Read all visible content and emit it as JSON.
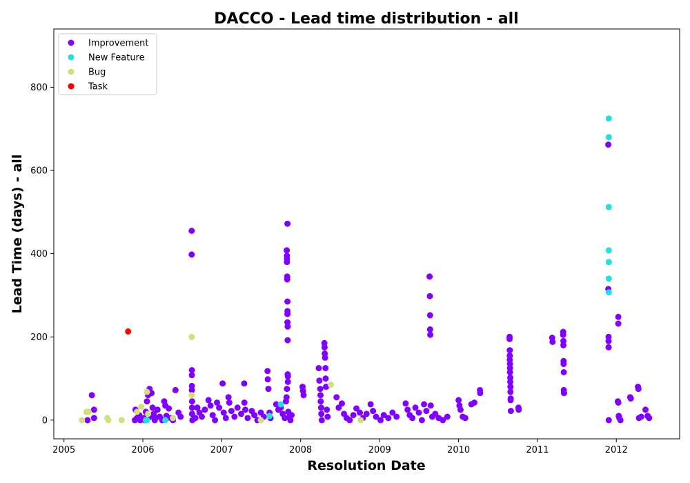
{
  "chart_data": {
    "type": "scatter",
    "title": "DACCO - Lead time distribution - all",
    "xlabel": "Resolution Date",
    "ylabel": "Lead Time (days) - all",
    "xlim": [
      "2004-11-15",
      "2012-10-20"
    ],
    "ylim": [
      -45,
      940
    ],
    "x_ticks": [
      "2005",
      "2006",
      "2007",
      "2008",
      "2009",
      "2010",
      "2011",
      "2012"
    ],
    "y_ticks": [
      0,
      200,
      400,
      600,
      800
    ],
    "grid": false,
    "legend_position": "top-left",
    "series": [
      {
        "name": "Improvement",
        "color": "#8000ff",
        "points": [
          [
            "2005-04-20",
            0
          ],
          [
            "2005-05-10",
            60
          ],
          [
            "2005-05-20",
            25
          ],
          [
            "2005-05-20",
            5
          ],
          [
            "2005-11-25",
            0
          ],
          [
            "2005-11-28",
            25
          ],
          [
            "2005-12-05",
            5
          ],
          [
            "2005-12-15",
            12
          ],
          [
            "2005-12-20",
            0
          ],
          [
            "2006-01-05",
            5
          ],
          [
            "2006-01-10",
            0
          ],
          [
            "2006-01-15",
            20
          ],
          [
            "2006-01-20",
            45
          ],
          [
            "2006-01-25",
            60
          ],
          [
            "2006-02-01",
            75
          ],
          [
            "2006-02-05",
            8
          ],
          [
            "2006-02-10",
            65
          ],
          [
            "2006-02-15",
            30
          ],
          [
            "2006-02-20",
            15
          ],
          [
            "2006-02-25",
            0
          ],
          [
            "2006-03-01",
            5
          ],
          [
            "2006-03-10",
            25
          ],
          [
            "2006-03-20",
            8
          ],
          [
            "2006-04-01",
            0
          ],
          [
            "2006-04-10",
            45
          ],
          [
            "2006-04-15",
            35
          ],
          [
            "2006-04-20",
            10
          ],
          [
            "2006-05-01",
            28
          ],
          [
            "2006-05-10",
            5
          ],
          [
            "2006-05-20",
            0
          ],
          [
            "2006-06-01",
            72
          ],
          [
            "2006-06-15",
            18
          ],
          [
            "2006-06-25",
            8
          ],
          [
            "2006-08-15",
            455
          ],
          [
            "2006-08-15",
            398
          ],
          [
            "2006-08-16",
            120
          ],
          [
            "2006-08-16",
            108
          ],
          [
            "2006-08-16",
            82
          ],
          [
            "2006-08-16",
            72
          ],
          [
            "2006-08-17",
            45
          ],
          [
            "2006-08-17",
            30
          ],
          [
            "2006-08-17",
            15
          ],
          [
            "2006-08-18",
            0
          ],
          [
            "2006-09-01",
            5
          ],
          [
            "2006-09-10",
            30
          ],
          [
            "2006-09-20",
            18
          ],
          [
            "2006-10-01",
            8
          ],
          [
            "2006-10-15",
            25
          ],
          [
            "2006-11-01",
            48
          ],
          [
            "2006-11-10",
            35
          ],
          [
            "2006-11-20",
            12
          ],
          [
            "2006-12-01",
            0
          ],
          [
            "2006-12-10",
            42
          ],
          [
            "2006-12-20",
            30
          ],
          [
            "2007-01-05",
            88
          ],
          [
            "2007-01-10",
            18
          ],
          [
            "2007-01-20",
            5
          ],
          [
            "2007-02-01",
            55
          ],
          [
            "2007-02-05",
            42
          ],
          [
            "2007-02-15",
            22
          ],
          [
            "2007-03-01",
            8
          ],
          [
            "2007-03-15",
            30
          ],
          [
            "2007-04-01",
            15
          ],
          [
            "2007-04-15",
            88
          ],
          [
            "2007-04-16",
            42
          ],
          [
            "2007-04-20",
            25
          ],
          [
            "2007-05-01",
            5
          ],
          [
            "2007-05-20",
            22
          ],
          [
            "2007-06-01",
            12
          ],
          [
            "2007-06-15",
            0
          ],
          [
            "2007-07-01",
            18
          ],
          [
            "2007-07-15",
            8
          ],
          [
            "2007-08-01",
            118
          ],
          [
            "2007-08-02",
            98
          ],
          [
            "2007-08-05",
            75
          ],
          [
            "2007-08-10",
            18
          ],
          [
            "2007-08-15",
            5
          ],
          [
            "2007-09-10",
            38
          ],
          [
            "2007-09-20",
            25
          ],
          [
            "2007-10-01",
            30
          ],
          [
            "2007-10-10",
            15
          ],
          [
            "2007-10-20",
            5
          ],
          [
            "2007-10-25",
            45
          ],
          [
            "2007-10-28",
            55
          ],
          [
            "2007-10-30",
            75
          ],
          [
            "2007-11-01",
            472
          ],
          [
            "2007-10-29",
            408
          ],
          [
            "2007-10-30",
            395
          ],
          [
            "2007-10-30",
            388
          ],
          [
            "2007-10-30",
            380
          ],
          [
            "2007-10-31",
            345
          ],
          [
            "2007-10-31",
            338
          ],
          [
            "2007-11-01",
            285
          ],
          [
            "2007-11-01",
            262
          ],
          [
            "2007-11-01",
            255
          ],
          [
            "2007-11-01",
            235
          ],
          [
            "2007-11-02",
            225
          ],
          [
            "2007-11-02",
            192
          ],
          [
            "2007-11-02",
            110
          ],
          [
            "2007-11-03",
            105
          ],
          [
            "2007-11-03",
            92
          ],
          [
            "2007-11-05",
            20
          ],
          [
            "2007-11-10",
            8
          ],
          [
            "2007-11-15",
            0
          ],
          [
            "2007-11-20",
            12
          ],
          [
            "2008-01-10",
            80
          ],
          [
            "2008-01-12",
            70
          ],
          [
            "2008-01-15",
            60
          ],
          [
            "2008-03-25",
            125
          ],
          [
            "2008-03-28",
            95
          ],
          [
            "2008-04-01",
            75
          ],
          [
            "2008-04-02",
            60
          ],
          [
            "2008-04-03",
            45
          ],
          [
            "2008-04-05",
            30
          ],
          [
            "2008-04-06",
            15
          ],
          [
            "2008-04-08",
            0
          ],
          [
            "2008-04-20",
            185
          ],
          [
            "2008-04-21",
            175
          ],
          [
            "2008-04-22",
            160
          ],
          [
            "2008-04-23",
            150
          ],
          [
            "2008-04-25",
            125
          ],
          [
            "2008-04-26",
            100
          ],
          [
            "2008-04-28",
            80
          ],
          [
            "2008-05-01",
            25
          ],
          [
            "2008-05-05",
            8
          ],
          [
            "2008-06-15",
            55
          ],
          [
            "2008-06-25",
            30
          ],
          [
            "2008-07-10",
            40
          ],
          [
            "2008-07-20",
            15
          ],
          [
            "2008-08-01",
            5
          ],
          [
            "2008-08-15",
            0
          ],
          [
            "2008-09-01",
            12
          ],
          [
            "2008-09-15",
            28
          ],
          [
            "2008-10-01",
            18
          ],
          [
            "2008-10-15",
            5
          ],
          [
            "2008-11-01",
            15
          ],
          [
            "2008-11-20",
            38
          ],
          [
            "2008-12-01",
            22
          ],
          [
            "2008-12-15",
            8
          ],
          [
            "2009-01-05",
            0
          ],
          [
            "2009-01-20",
            12
          ],
          [
            "2009-02-10",
            5
          ],
          [
            "2009-03-01",
            18
          ],
          [
            "2009-03-20",
            8
          ],
          [
            "2009-05-01",
            40
          ],
          [
            "2009-05-10",
            25
          ],
          [
            "2009-05-20",
            12
          ],
          [
            "2009-06-01",
            5
          ],
          [
            "2009-06-15",
            30
          ],
          [
            "2009-07-01",
            18
          ],
          [
            "2009-07-15",
            0
          ],
          [
            "2009-07-25",
            38
          ],
          [
            "2009-08-05",
            22
          ],
          [
            "2009-08-20",
            345
          ],
          [
            "2009-08-21",
            298
          ],
          [
            "2009-08-22",
            252
          ],
          [
            "2009-08-22",
            218
          ],
          [
            "2009-08-23",
            205
          ],
          [
            "2009-08-25",
            35
          ],
          [
            "2009-09-01",
            8
          ],
          [
            "2009-09-15",
            15
          ],
          [
            "2009-10-01",
            5
          ],
          [
            "2009-10-20",
            0
          ],
          [
            "2009-11-10",
            8
          ],
          [
            "2010-01-01",
            48
          ],
          [
            "2010-01-05",
            35
          ],
          [
            "2010-01-10",
            25
          ],
          [
            "2010-01-20",
            8
          ],
          [
            "2010-02-01",
            5
          ],
          [
            "2010-03-01",
            38
          ],
          [
            "2010-03-15",
            42
          ],
          [
            "2010-04-10",
            72
          ],
          [
            "2010-04-11",
            65
          ],
          [
            "2010-08-25",
            200
          ],
          [
            "2010-08-25",
            195
          ],
          [
            "2010-08-26",
            168
          ],
          [
            "2010-08-26",
            155
          ],
          [
            "2010-08-26",
            145
          ],
          [
            "2010-08-27",
            135
          ],
          [
            "2010-08-27",
            125
          ],
          [
            "2010-08-27",
            115
          ],
          [
            "2010-08-28",
            102
          ],
          [
            "2010-08-28",
            92
          ],
          [
            "2010-08-29",
            80
          ],
          [
            "2010-08-29",
            68
          ],
          [
            "2010-08-30",
            52
          ],
          [
            "2010-08-30",
            48
          ],
          [
            "2010-08-31",
            22
          ],
          [
            "2010-10-05",
            30
          ],
          [
            "2010-10-06",
            25
          ],
          [
            "2011-03-10",
            198
          ],
          [
            "2011-03-12",
            188
          ],
          [
            "2011-04-30",
            212
          ],
          [
            "2011-04-30",
            205
          ],
          [
            "2011-05-01",
            190
          ],
          [
            "2011-05-01",
            180
          ],
          [
            "2011-05-02",
            142
          ],
          [
            "2011-05-02",
            135
          ],
          [
            "2011-05-03",
            115
          ],
          [
            "2011-05-03",
            72
          ],
          [
            "2011-05-04",
            65
          ],
          [
            "2011-11-25",
            662
          ],
          [
            "2011-11-25",
            315
          ],
          [
            "2011-11-26",
            200
          ],
          [
            "2011-11-26",
            190
          ],
          [
            "2011-11-26",
            175
          ],
          [
            "2011-11-27",
            0
          ],
          [
            "2012-01-10",
            248
          ],
          [
            "2012-01-10",
            232
          ],
          [
            "2012-01-08",
            45
          ],
          [
            "2012-01-10",
            42
          ],
          [
            "2012-01-12",
            10
          ],
          [
            "2012-01-15",
            5
          ],
          [
            "2012-01-20",
            0
          ],
          [
            "2012-03-05",
            55
          ],
          [
            "2012-03-08",
            52
          ],
          [
            "2012-04-10",
            80
          ],
          [
            "2012-04-12",
            75
          ],
          [
            "2012-04-15",
            5
          ],
          [
            "2012-04-25",
            8
          ],
          [
            "2012-05-15",
            25
          ],
          [
            "2012-05-25",
            10
          ],
          [
            "2012-06-01",
            5
          ]
        ]
      },
      {
        "name": "New Feature",
        "color": "#2adddd",
        "points": [
          [
            "2006-01-15",
            0
          ],
          [
            "2006-01-20",
            0
          ],
          [
            "2006-04-15",
            0
          ],
          [
            "2007-08-10",
            10
          ],
          [
            "2007-10-01",
            38
          ],
          [
            "2011-11-27",
            725
          ],
          [
            "2011-11-27",
            680
          ],
          [
            "2011-11-27",
            512
          ],
          [
            "2011-11-27",
            408
          ],
          [
            "2011-11-27",
            380
          ],
          [
            "2011-11-27",
            340
          ],
          [
            "2011-11-27",
            307
          ]
        ]
      },
      {
        "name": "Bug",
        "color": "#d4dd80",
        "points": [
          [
            "2005-03-25",
            0
          ],
          [
            "2005-04-15",
            20
          ],
          [
            "2005-04-25",
            20
          ],
          [
            "2005-07-20",
            5
          ],
          [
            "2005-07-25",
            0
          ],
          [
            "2005-09-25",
            0
          ],
          [
            "2005-12-05",
            20
          ],
          [
            "2005-12-25",
            32
          ],
          [
            "2006-01-20",
            68
          ],
          [
            "2006-01-25",
            15
          ],
          [
            "2006-05-20",
            5
          ],
          [
            "2006-08-15",
            200
          ],
          [
            "2006-08-15",
            60
          ],
          [
            "2007-07-01",
            0
          ],
          [
            "2008-05-20",
            85
          ],
          [
            "2008-10-05",
            0
          ]
        ]
      },
      {
        "name": "Task",
        "color": "#ff0000",
        "points": [
          [
            "2005-10-25",
            213
          ]
        ]
      }
    ]
  }
}
